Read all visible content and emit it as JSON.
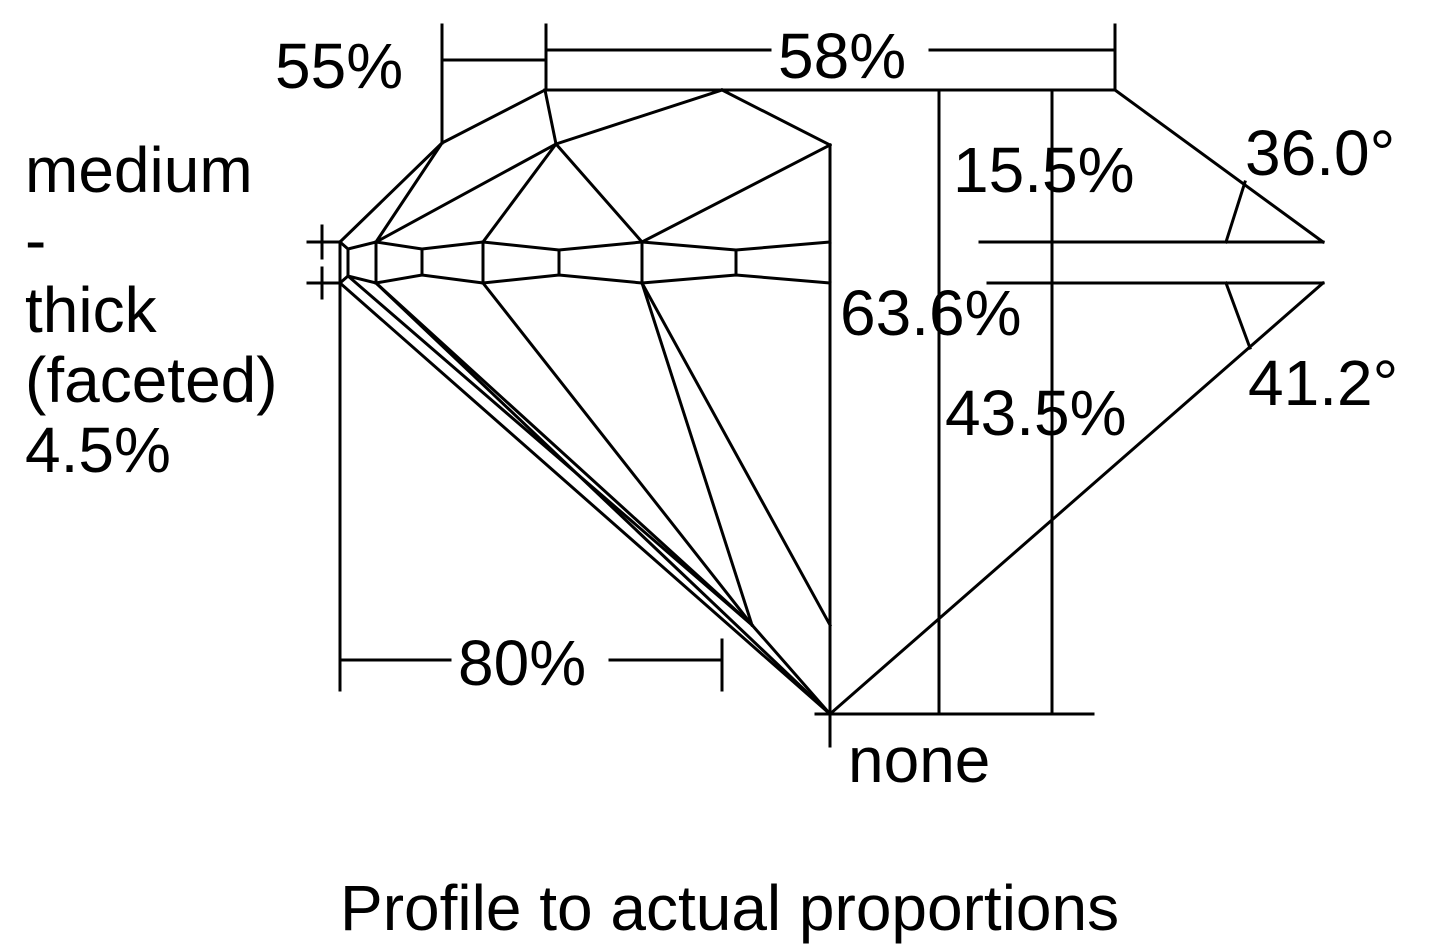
{
  "labels": {
    "crown_table_left": "55%",
    "table": "58%",
    "crown_height": "15.5%",
    "crown_angle": "36.0°",
    "girdle_line1": "medium",
    "girdle_line2": "-",
    "girdle_line3": "thick",
    "girdle_line4": "(faceted)",
    "girdle_line5": "4.5%",
    "total_depth": "63.6%",
    "pavilion_depth": "43.5%",
    "pavilion_angle": "41.2°",
    "lower_half": "80%",
    "culet": "none",
    "caption": "Profile to actual proportions"
  },
  "colors": {
    "line": "#000000",
    "background": "#ffffff"
  }
}
